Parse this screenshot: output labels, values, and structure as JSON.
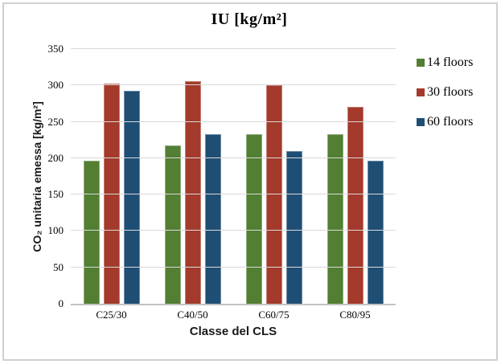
{
  "frame": {
    "border_color": "#d0d0d0"
  },
  "chart_data": {
    "type": "bar",
    "title": "IU [kg/m²]",
    "xlabel": "Classe del CLS",
    "ylabel": "CO₂ unitaria emessa [kg/m²]",
    "categories": [
      "C25/30",
      "C40/50",
      "C60/75",
      "C80/95"
    ],
    "series": [
      {
        "name": "14 floors",
        "color": "#527F32",
        "values": [
          197,
          217,
          233,
          233
        ]
      },
      {
        "name": "30 floors",
        "color": "#A33A2B",
        "values": [
          302,
          306,
          300,
          271
        ]
      },
      {
        "name": "60 floors",
        "color": "#1F4E74",
        "values": [
          293,
          233,
          210,
          196
        ]
      }
    ],
    "ylim": [
      0,
      350
    ],
    "yticks": [
      0,
      50,
      100,
      150,
      200,
      250,
      300,
      350
    ],
    "grid": true,
    "legend_position": "right",
    "colors": {
      "gridline": "#d9d9d9",
      "axis_line": "#c2c2c2"
    }
  }
}
